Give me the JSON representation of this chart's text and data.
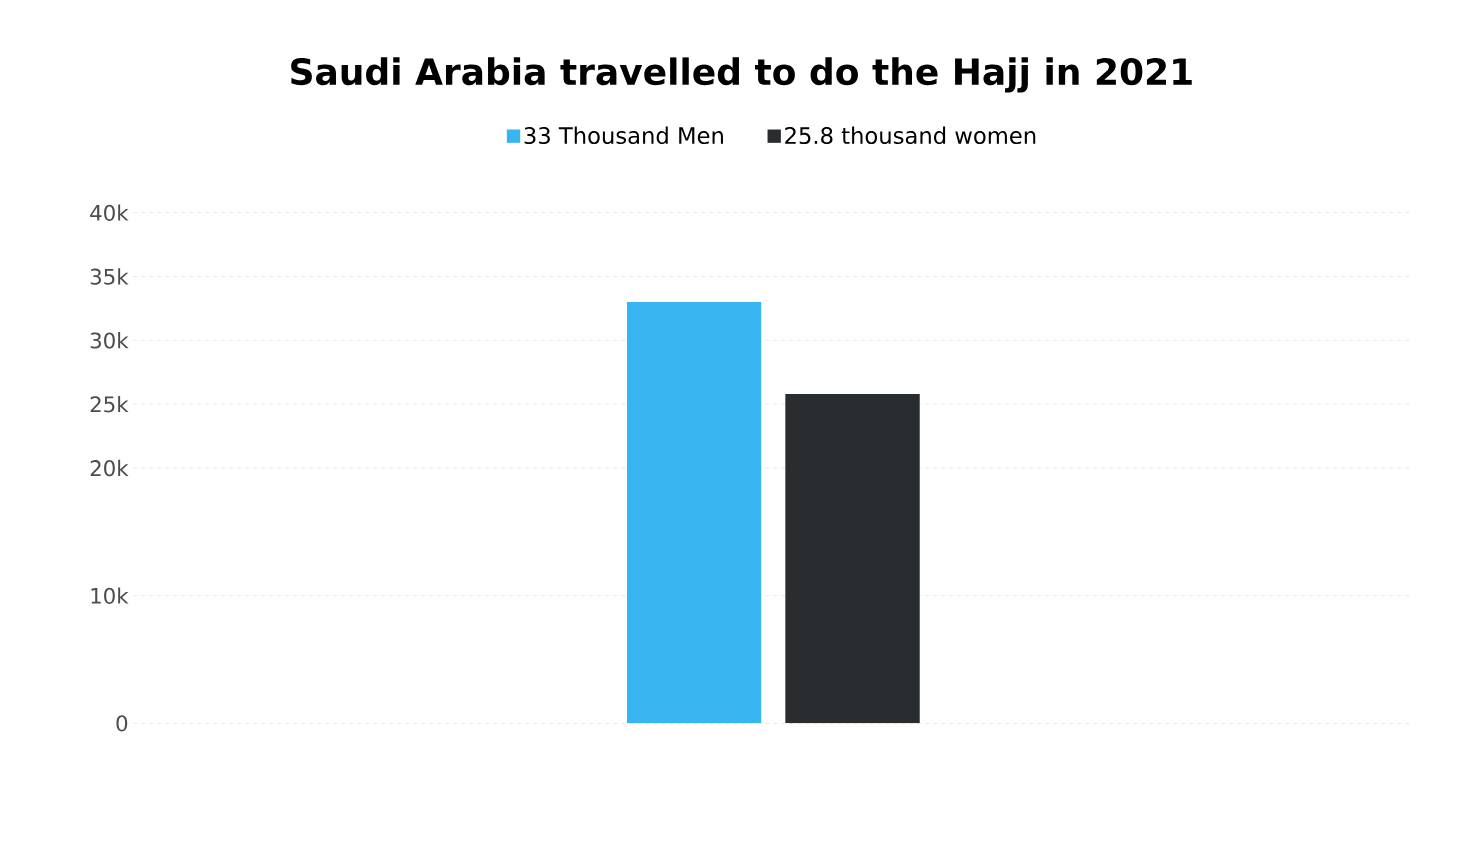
{
  "chart_data": {
    "type": "bar",
    "title": "Saudi Arabia travelled to do the Hajj in 2021",
    "categories": [
      null
    ],
    "series": [
      {
        "name": "33 Thousand Men",
        "color": "#38b4f0",
        "values": [
          33000
        ]
      },
      {
        "name": "25.8 thousand women",
        "color": "#2a2d30",
        "values": [
          25800
        ]
      }
    ],
    "ylim": [
      0,
      40000
    ],
    "yticks": [
      0,
      {
        "value": 10000,
        "label": "10k"
      },
      {
        "value": 20000,
        "label": "20k"
      },
      {
        "value": 25000,
        "label": "25k"
      },
      {
        "value": 30000,
        "label": "30k"
      },
      {
        "value": 35000,
        "label": "35k"
      },
      {
        "value": 40000,
        "label": "40k"
      }
    ],
    "grid": "y",
    "legend": "top"
  }
}
